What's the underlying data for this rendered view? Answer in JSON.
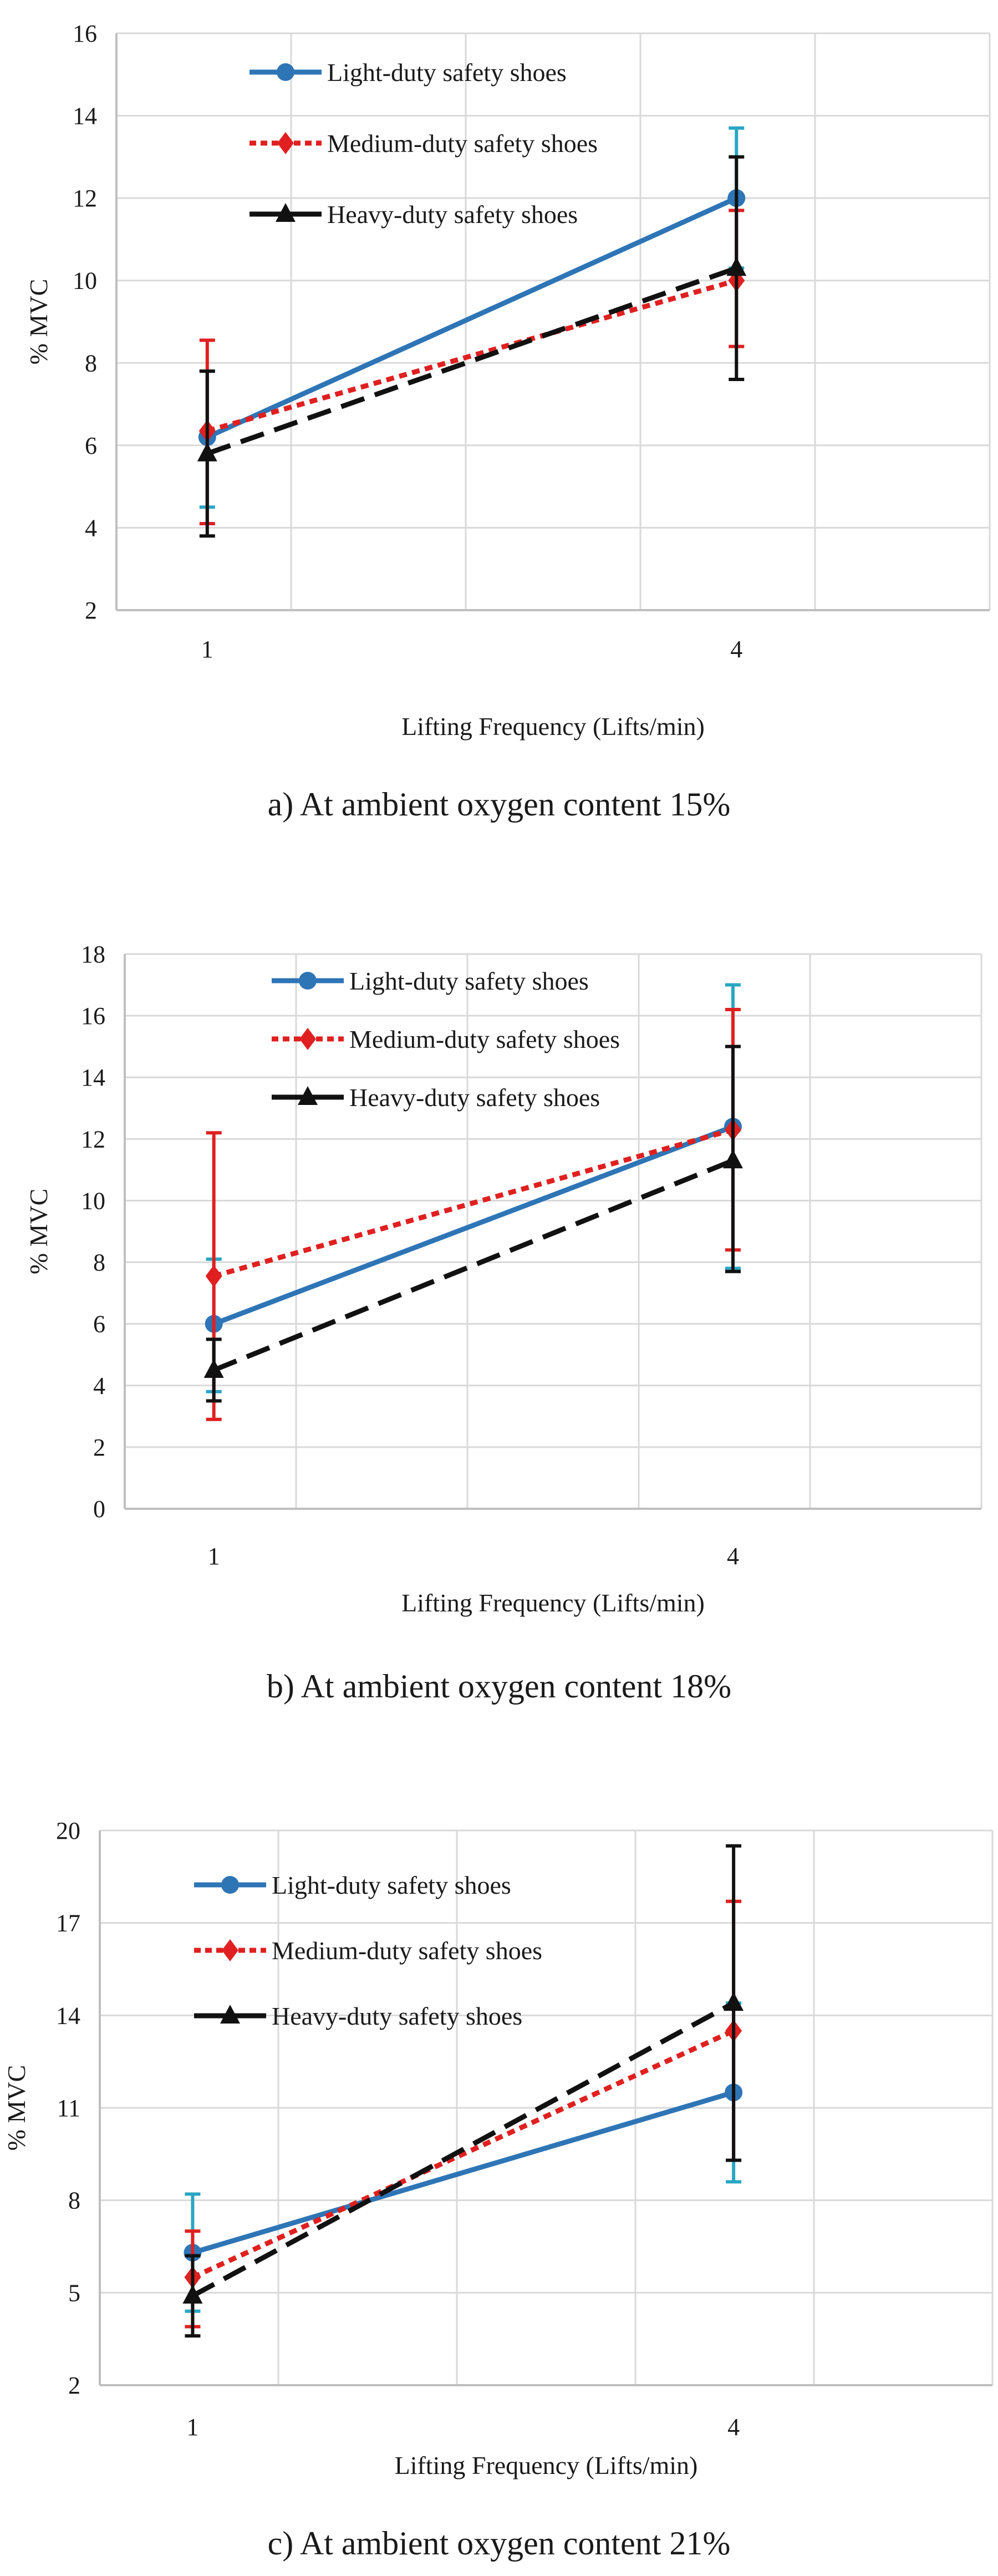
{
  "chart_data": [
    {
      "type": "line",
      "caption": "a) At ambient oxygen content 15%",
      "xlabel": "Lifting Frequency (Lifts/min)",
      "ylabel": "% MVC",
      "categories": [
        "1",
        "4"
      ],
      "ylim": [
        2,
        16
      ],
      "yticks": [
        2,
        4,
        6,
        8,
        10,
        12,
        14,
        16
      ],
      "grid": true,
      "legend_position": "top-center",
      "series": [
        {
          "name": "Light-duty safety shoes",
          "values": [
            6.2,
            12.0
          ],
          "error_low": [
            4.5,
            10.3
          ],
          "error_high": [
            7.8,
            13.7
          ]
        },
        {
          "name": "Medium-duty safety shoes",
          "values": [
            6.35,
            10.0
          ],
          "error_low": [
            4.1,
            8.4
          ],
          "error_high": [
            8.55,
            11.7
          ]
        },
        {
          "name": "Heavy-duty safety shoes",
          "values": [
            5.8,
            10.3
          ],
          "error_low": [
            3.8,
            7.6
          ],
          "error_high": [
            7.8,
            13.0
          ]
        }
      ]
    },
    {
      "type": "line",
      "caption": "b) At ambient oxygen content 18%",
      "xlabel": "Lifting Frequency (Lifts/min)",
      "ylabel": "% MVC",
      "categories": [
        "1",
        "4"
      ],
      "ylim": [
        0,
        18
      ],
      "yticks": [
        0,
        2,
        4,
        6,
        8,
        10,
        12,
        14,
        16,
        18
      ],
      "grid": true,
      "legend_position": "top-center",
      "series": [
        {
          "name": "Light-duty safety shoes",
          "values": [
            6.0,
            12.4
          ],
          "error_low": [
            3.8,
            7.8
          ],
          "error_high": [
            8.1,
            17.0
          ]
        },
        {
          "name": "Medium-duty safety shoes",
          "values": [
            7.55,
            12.3
          ],
          "error_low": [
            2.9,
            8.4
          ],
          "error_high": [
            12.2,
            16.2
          ]
        },
        {
          "name": "Heavy-duty safety shoes",
          "values": [
            4.5,
            11.3
          ],
          "error_low": [
            3.5,
            7.7
          ],
          "error_high": [
            5.5,
            15.0
          ]
        }
      ]
    },
    {
      "type": "line",
      "caption": "c) At ambient oxygen content 21%",
      "xlabel": "Lifting Frequency (Lifts/min)",
      "ylabel": "% MVC",
      "categories": [
        "1",
        "4"
      ],
      "ylim": [
        2,
        20
      ],
      "yticks": [
        2,
        5,
        8,
        11,
        14,
        17,
        20
      ],
      "grid": true,
      "legend_position": "top-center",
      "series": [
        {
          "name": "Light-duty safety shoes",
          "values": [
            6.3,
            11.5
          ],
          "error_low": [
            4.4,
            8.6
          ],
          "error_high": [
            8.2,
            14.4
          ]
        },
        {
          "name": "Medium-duty safety shoes",
          "values": [
            5.5,
            13.5
          ],
          "error_low": [
            3.9,
            9.3
          ],
          "error_high": [
            7.0,
            17.7
          ]
        },
        {
          "name": "Heavy-duty safety shoes",
          "values": [
            4.9,
            14.4
          ],
          "error_low": [
            3.6,
            9.3
          ],
          "error_high": [
            6.2,
            19.5
          ]
        }
      ]
    }
  ],
  "colors": {
    "light": "#2e75b6",
    "light_err": "#2aa6c4",
    "medium": "#e02020",
    "heavy": "#111111",
    "grid": "#d9d9d9",
    "axis": "#bfbfbf"
  }
}
